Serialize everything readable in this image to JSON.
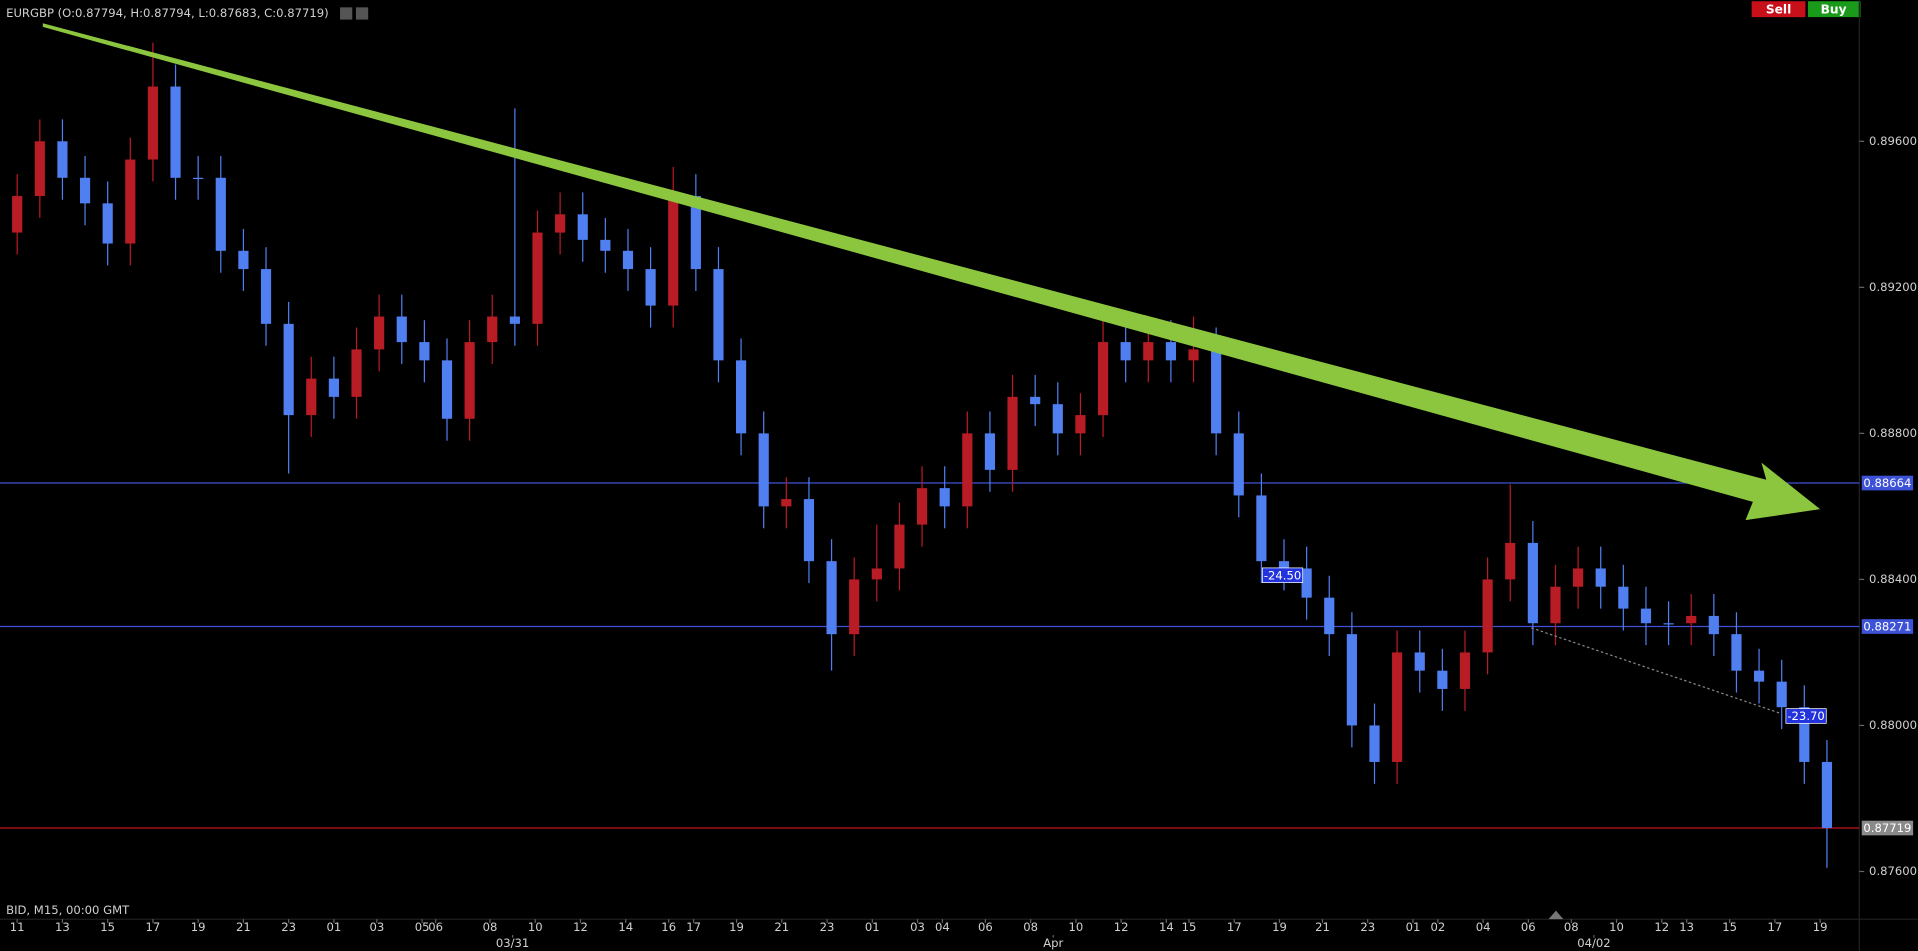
{
  "chart_data": {
    "type": "candlestick",
    "symbol_info": "EURGBP (O:0.87794, H:0.87794, L:0.87683, C:0.87719)",
    "footer_info": "BID, M15, 00:00 GMT",
    "buttons": [
      "Sell",
      "Buy"
    ],
    "annotations": [
      "-24.50",
      "-23.70"
    ],
    "up_color": "#b81c24",
    "down_color": "#4f7ff0",
    "xlim": [
      -0.76,
      81.43
    ],
    "ylim": [
      0.87523,
      0.89987
    ],
    "yticks": [
      {
        "value": 0.896,
        "label": "0.89600"
      },
      {
        "value": 0.892,
        "label": "0.89200"
      },
      {
        "value": 0.888,
        "label": "0.88800"
      },
      {
        "value": 0.884,
        "label": "0.88400"
      },
      {
        "value": 0.88,
        "label": "0.88000"
      },
      {
        "value": 0.876,
        "label": "0.87600"
      }
    ],
    "xticks": [
      {
        "value": 0,
        "label": "11"
      },
      {
        "value": 2,
        "label": "13"
      },
      {
        "value": 4,
        "label": "15"
      },
      {
        "value": 6,
        "label": "17"
      },
      {
        "value": 8,
        "label": "19"
      },
      {
        "value": 10,
        "label": "21"
      },
      {
        "value": 12,
        "label": "23"
      },
      {
        "value": 14,
        "label": "01"
      },
      {
        "value": 15.9,
        "label": "03"
      },
      {
        "value": 17.9,
        "label": "05"
      },
      {
        "value": 18.5,
        "label": "06"
      },
      {
        "value": 20.9,
        "label": "08"
      },
      {
        "value": 22.9,
        "label": "10"
      },
      {
        "value": 24.9,
        "label": "12"
      },
      {
        "value": 26.9,
        "label": "14"
      },
      {
        "value": 28.8,
        "label": "16"
      },
      {
        "value": 29.9,
        "label": "17"
      },
      {
        "value": 31.8,
        "label": "19"
      },
      {
        "value": 33.8,
        "label": "21"
      },
      {
        "value": 35.8,
        "label": "23"
      },
      {
        "value": 37.8,
        "label": "01"
      },
      {
        "value": 39.8,
        "label": "03"
      },
      {
        "value": 40.9,
        "label": "04"
      },
      {
        "value": 42.8,
        "label": "06"
      },
      {
        "value": 44.8,
        "label": "08"
      },
      {
        "value": 46.8,
        "label": "10"
      },
      {
        "value": 48.8,
        "label": "12"
      },
      {
        "value": 50.8,
        "label": "14"
      },
      {
        "value": 51.8,
        "label": "15"
      },
      {
        "value": 53.8,
        "label": "17"
      },
      {
        "value": 55.8,
        "label": "19"
      },
      {
        "value": 57.7,
        "label": "21"
      },
      {
        "value": 59.7,
        "label": "23"
      },
      {
        "value": 61.7,
        "label": "01"
      },
      {
        "value": 62.8,
        "label": "02"
      },
      {
        "value": 64.8,
        "label": "04"
      },
      {
        "value": 66.8,
        "label": "06"
      },
      {
        "value": 68.7,
        "label": "08"
      },
      {
        "value": 70.7,
        "label": "10"
      },
      {
        "value": 72.7,
        "label": "12"
      },
      {
        "value": 73.8,
        "label": "13"
      },
      {
        "value": 75.7,
        "label": "15"
      },
      {
        "value": 77.7,
        "label": "17"
      },
      {
        "value": 79.7,
        "label": "19"
      }
    ],
    "xticks2": [
      {
        "value": 21.9,
        "label": "03/31"
      },
      {
        "value": 45.8,
        "label": "Apr"
      },
      {
        "value": 69.7,
        "label": "04/02"
      }
    ],
    "levels": [
      {
        "value": 0.88664,
        "color": "#3d52d6"
      },
      {
        "value": 0.88271,
        "color": "#3d52d6"
      },
      {
        "value": 0.87719,
        "color": "#c0141c"
      }
    ],
    "candles": [
      [
        0,
        0.8935,
        0.8951,
        0.8929,
        0.8945
      ],
      [
        1,
        0.8945,
        0.8966,
        0.8939,
        0.896
      ],
      [
        2,
        0.896,
        0.8966,
        0.8944,
        0.895
      ],
      [
        3,
        0.895,
        0.8956,
        0.8937,
        0.8943
      ],
      [
        4,
        0.8943,
        0.8949,
        0.8926,
        0.8932
      ],
      [
        5,
        0.8932,
        0.8961,
        0.8926,
        0.8955
      ],
      [
        6,
        0.8955,
        0.8987,
        0.8949,
        0.8975
      ],
      [
        7,
        0.8975,
        0.8981,
        0.8944,
        0.895
      ],
      [
        8,
        0.895,
        0.8956,
        0.8944,
        0.895
      ],
      [
        9,
        0.895,
        0.8956,
        0.8924,
        0.893
      ],
      [
        10,
        0.893,
        0.8936,
        0.8919,
        0.8925
      ],
      [
        11,
        0.8925,
        0.8931,
        0.8904,
        0.891
      ],
      [
        12,
        0.891,
        0.8916,
        0.8869,
        0.8885
      ],
      [
        13,
        0.8885,
        0.8901,
        0.8879,
        0.8895
      ],
      [
        14,
        0.8895,
        0.8901,
        0.8884,
        0.889
      ],
      [
        15,
        0.889,
        0.8909,
        0.8884,
        0.8903
      ],
      [
        16,
        0.8903,
        0.8918,
        0.8897,
        0.8912
      ],
      [
        17,
        0.8912,
        0.8918,
        0.8899,
        0.8905
      ],
      [
        18,
        0.8905,
        0.8911,
        0.8894,
        0.89
      ],
      [
        19,
        0.89,
        0.8906,
        0.8878,
        0.8884
      ],
      [
        20,
        0.8884,
        0.8911,
        0.8878,
        0.8905
      ],
      [
        21,
        0.8905,
        0.8918,
        0.8899,
        0.8912
      ],
      [
        22,
        0.8912,
        0.8969,
        0.8904,
        0.891
      ],
      [
        23,
        0.891,
        0.8941,
        0.8904,
        0.8935
      ],
      [
        24,
        0.8935,
        0.8946,
        0.8929,
        0.894
      ],
      [
        25,
        0.894,
        0.8946,
        0.8927,
        0.8933
      ],
      [
        26,
        0.8933,
        0.8939,
        0.8924,
        0.893
      ],
      [
        27,
        0.893,
        0.8936,
        0.8919,
        0.8925
      ],
      [
        28,
        0.8925,
        0.8931,
        0.8909,
        0.8915
      ],
      [
        29,
        0.8915,
        0.8953,
        0.8909,
        0.8945
      ],
      [
        30,
        0.8945,
        0.8951,
        0.8919,
        0.8925
      ],
      [
        31,
        0.8925,
        0.8931,
        0.8894,
        0.89
      ],
      [
        32,
        0.89,
        0.8906,
        0.8874,
        0.888
      ],
      [
        33,
        0.888,
        0.8886,
        0.8854,
        0.886
      ],
      [
        34,
        0.886,
        0.8868,
        0.8854,
        0.8862
      ],
      [
        35,
        0.8862,
        0.8868,
        0.8839,
        0.8845
      ],
      [
        36,
        0.8845,
        0.8851,
        0.8815,
        0.8825
      ],
      [
        37,
        0.8825,
        0.8846,
        0.8819,
        0.884
      ],
      [
        38,
        0.884,
        0.8855,
        0.8834,
        0.8843
      ],
      [
        39,
        0.8843,
        0.8861,
        0.8837,
        0.8855
      ],
      [
        40,
        0.8855,
        0.8871,
        0.8849,
        0.8865
      ],
      [
        41,
        0.8865,
        0.8871,
        0.8854,
        0.886
      ],
      [
        42,
        0.886,
        0.8886,
        0.8854,
        0.888
      ],
      [
        43,
        0.888,
        0.8886,
        0.8864,
        0.887
      ],
      [
        44,
        0.887,
        0.8896,
        0.8864,
        0.889
      ],
      [
        45,
        0.889,
        0.8896,
        0.8882,
        0.8888
      ],
      [
        46,
        0.8888,
        0.8894,
        0.8874,
        0.888
      ],
      [
        47,
        0.888,
        0.8891,
        0.8874,
        0.8885
      ],
      [
        48,
        0.8885,
        0.8911,
        0.8879,
        0.8905
      ],
      [
        49,
        0.8905,
        0.8911,
        0.8894,
        0.89
      ],
      [
        50,
        0.89,
        0.8911,
        0.8894,
        0.8905
      ],
      [
        51,
        0.8905,
        0.8911,
        0.8894,
        0.89
      ],
      [
        52,
        0.89,
        0.8912,
        0.8894,
        0.8903
      ],
      [
        53,
        0.8903,
        0.8909,
        0.8874,
        0.888
      ],
      [
        54,
        0.888,
        0.8886,
        0.8857,
        0.8863
      ],
      [
        55,
        0.8863,
        0.8869,
        0.8839,
        0.8845
      ],
      [
        56,
        0.8845,
        0.8851,
        0.8837,
        0.8843
      ],
      [
        57,
        0.8843,
        0.8849,
        0.8829,
        0.8835
      ],
      [
        58,
        0.8835,
        0.8841,
        0.8819,
        0.8825
      ],
      [
        59,
        0.8825,
        0.8831,
        0.8794,
        0.88
      ],
      [
        60,
        0.88,
        0.8806,
        0.8784,
        0.879
      ],
      [
        61,
        0.879,
        0.8826,
        0.8784,
        0.882
      ],
      [
        62,
        0.882,
        0.8826,
        0.8809,
        0.8815
      ],
      [
        63,
        0.8815,
        0.8821,
        0.8804,
        0.881
      ],
      [
        64,
        0.881,
        0.8826,
        0.8804,
        0.882
      ],
      [
        65,
        0.882,
        0.8846,
        0.8814,
        0.884
      ],
      [
        66,
        0.884,
        0.8866,
        0.8834,
        0.885
      ],
      [
        67,
        0.885,
        0.8856,
        0.8822,
        0.8828
      ],
      [
        68,
        0.8828,
        0.8844,
        0.8822,
        0.8838
      ],
      [
        69,
        0.8838,
        0.8849,
        0.8832,
        0.8843
      ],
      [
        70,
        0.8843,
        0.8849,
        0.8832,
        0.8838
      ],
      [
        71,
        0.8838,
        0.8844,
        0.8826,
        0.8832
      ],
      [
        72,
        0.8832,
        0.8838,
        0.8822,
        0.8828
      ],
      [
        73,
        0.8828,
        0.8834,
        0.8822,
        0.8828
      ],
      [
        74,
        0.8828,
        0.8836,
        0.8822,
        0.883
      ],
      [
        75,
        0.883,
        0.8836,
        0.8819,
        0.8825
      ],
      [
        76,
        0.8825,
        0.8831,
        0.8809,
        0.8815
      ],
      [
        77,
        0.8815,
        0.8821,
        0.8806,
        0.8812
      ],
      [
        78,
        0.8812,
        0.8818,
        0.8799,
        0.8805
      ],
      [
        79,
        0.8805,
        0.8811,
        0.8784,
        0.879
      ],
      [
        80,
        0.879,
        0.8796,
        0.8761,
        0.87719
      ]
    ]
  }
}
